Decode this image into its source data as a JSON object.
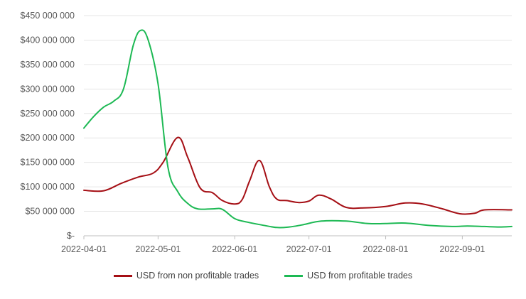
{
  "chart_data": {
    "type": "line",
    "title": "",
    "xlabel": "",
    "ylabel": "",
    "ylim": [
      0,
      450000000
    ],
    "y_ticks": [
      {
        "value": 0,
        "label": "$-"
      },
      {
        "value": 50000000,
        "label": "$50 000 000"
      },
      {
        "value": 100000000,
        "label": "$100 000 000"
      },
      {
        "value": 150000000,
        "label": "$150 000 000"
      },
      {
        "value": 200000000,
        "label": "$200 000 000"
      },
      {
        "value": 250000000,
        "label": "$250 000 000"
      },
      {
        "value": 300000000,
        "label": "$300 000 000"
      },
      {
        "value": 350000000,
        "label": "$350 000 000"
      },
      {
        "value": 400000000,
        "label": "$400 000 000"
      },
      {
        "value": 450000000,
        "label": "$450 000 000"
      }
    ],
    "xlim": [
      0,
      173
    ],
    "x_ticks": [
      {
        "value": 0,
        "label": "2022-04-01"
      },
      {
        "value": 30,
        "label": "2022-05-01"
      },
      {
        "value": 61,
        "label": "2022-06-01"
      },
      {
        "value": 91,
        "label": "2022-07-01"
      },
      {
        "value": 122,
        "label": "2022-08-01"
      },
      {
        "value": 153,
        "label": "2022-09-01"
      }
    ],
    "grid": true,
    "legend_position": "bottom",
    "series": [
      {
        "name": "USD from non profitable trades",
        "color": "#a50f15",
        "x": [
          0,
          8,
          15,
          22,
          28,
          32,
          38,
          42,
          47,
          52,
          56,
          61,
          64,
          67,
          71,
          75,
          78,
          82,
          87,
          91,
          95,
          100,
          106,
          113,
          122,
          130,
          137,
          145,
          152,
          158,
          162,
          173
        ],
        "values": [
          93000000,
          92000000,
          107000000,
          120000000,
          128000000,
          150000000,
          201000000,
          160000000,
          98000000,
          88000000,
          72000000,
          65000000,
          74000000,
          112000000,
          154000000,
          100000000,
          75000000,
          72000000,
          68000000,
          71000000,
          83000000,
          75000000,
          58000000,
          57000000,
          60000000,
          67000000,
          65000000,
          55000000,
          45000000,
          46000000,
          53000000,
          53000000
        ]
      },
      {
        "name": "USD from profitable trades",
        "color": "#1db954",
        "x": [
          0,
          4,
          8,
          12,
          16,
          20,
          23,
          26,
          30,
          34,
          38,
          42,
          46,
          52,
          56,
          61,
          66,
          72,
          78,
          83,
          88,
          96,
          106,
          115,
          122,
          130,
          140,
          150,
          155,
          162,
          168,
          173
        ],
        "values": [
          220000000,
          244000000,
          263000000,
          275000000,
          300000000,
          390000000,
          420000000,
          400000000,
          310000000,
          140000000,
          90000000,
          66000000,
          55000000,
          55000000,
          54000000,
          35000000,
          28000000,
          22000000,
          17000000,
          18000000,
          22000000,
          30000000,
          30000000,
          25000000,
          25000000,
          26000000,
          21000000,
          19000000,
          20000000,
          19000000,
          18000000,
          19000000
        ]
      }
    ]
  }
}
